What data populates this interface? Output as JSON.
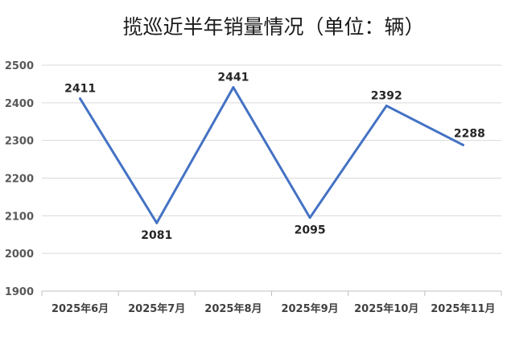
{
  "chart_data": {
    "type": "line",
    "title": "揽巡近半年销量情况（单位：辆）",
    "xlabel": "",
    "ylabel": "",
    "categories": [
      "2025年6月",
      "2025年7月",
      "2025年8月",
      "2025年9月",
      "2025年10月",
      "2025年11月"
    ],
    "series": [
      {
        "values": [
          2411,
          2081,
          2441,
          2095,
          2392,
          2288
        ]
      }
    ],
    "ylim": [
      1900,
      2500
    ],
    "yticks": [
      1900,
      2000,
      2100,
      2200,
      2300,
      2400,
      2500
    ],
    "grid": true,
    "legend": "none",
    "series_color": "#4472C4"
  }
}
